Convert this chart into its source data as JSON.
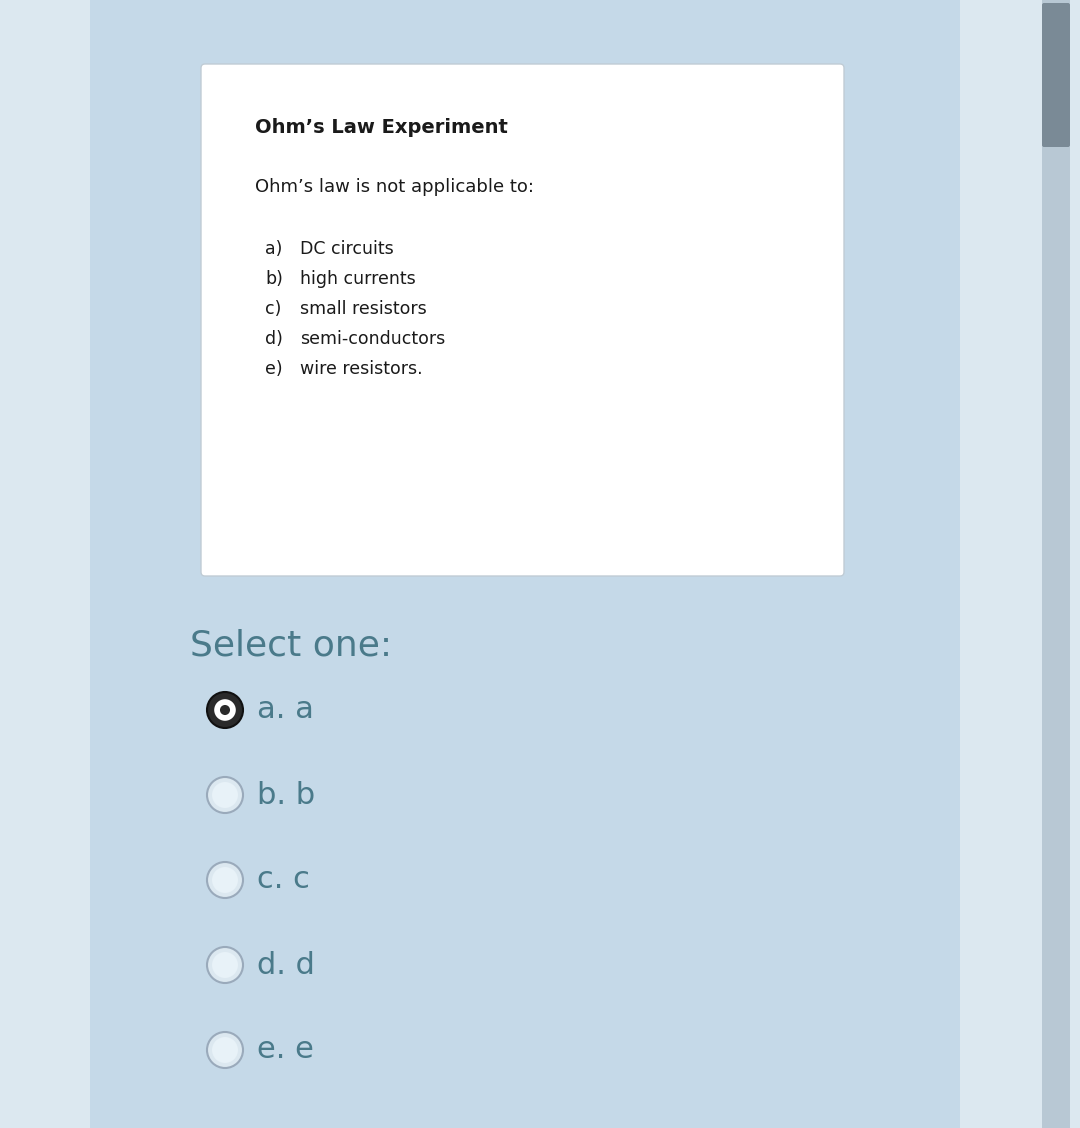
{
  "bg_color": "#c5d9e8",
  "outer_bg": "#dce8f0",
  "card_bg": "#ffffff",
  "title": "Ohm’s Law Experiment",
  "question": "Ohm’s law is not applicable to:",
  "options": [
    [
      "a)",
      "DC circuits"
    ],
    [
      "b)",
      "high currents"
    ],
    [
      "c)",
      "small resistors"
    ],
    [
      "d)",
      "semi-conductors"
    ],
    [
      "e)",
      "wire resistors."
    ]
  ],
  "select_label": "Select one:",
  "select_color": "#4a7a8a",
  "choices": [
    {
      "label": "a. a",
      "selected": true
    },
    {
      "label": "b. b",
      "selected": false
    },
    {
      "label": "c. c",
      "selected": false
    },
    {
      "label": "d. d",
      "selected": false
    },
    {
      "label": "e. e",
      "selected": false
    }
  ],
  "text_color": "#1a1a1a",
  "scrollbar_bg": "#8a9aaa",
  "scrollbar_thumb": "#6a7a8a",
  "scrollbar_thumb2": "#9aaabb"
}
